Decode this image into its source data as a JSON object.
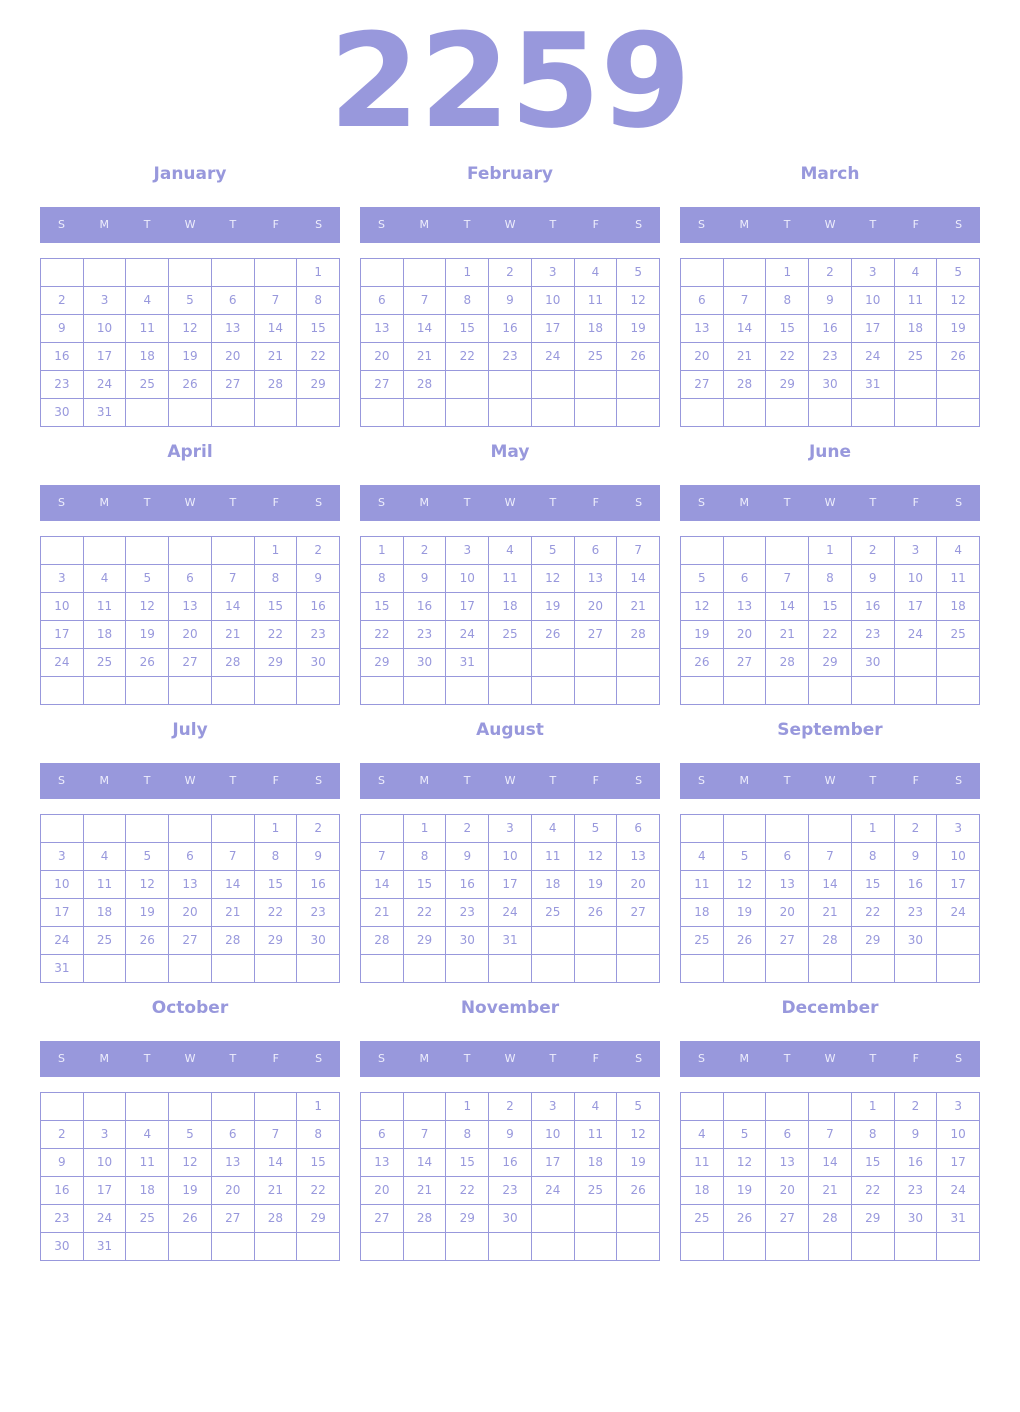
{
  "year": "2259",
  "weekday_labels": [
    "S",
    "M",
    "T",
    "W",
    "T",
    "F",
    "S"
  ],
  "colors": {
    "accent": "#9898dc",
    "header_text": "#eeeefc"
  },
  "months": [
    {
      "name": "January",
      "first_weekday": 6,
      "days": 31
    },
    {
      "name": "February",
      "first_weekday": 2,
      "days": 28
    },
    {
      "name": "March",
      "first_weekday": 2,
      "days": 31
    },
    {
      "name": "April",
      "first_weekday": 5,
      "days": 30
    },
    {
      "name": "May",
      "first_weekday": 0,
      "days": 31
    },
    {
      "name": "June",
      "first_weekday": 3,
      "days": 30
    },
    {
      "name": "July",
      "first_weekday": 5,
      "days": 31
    },
    {
      "name": "August",
      "first_weekday": 1,
      "days": 31
    },
    {
      "name": "September",
      "first_weekday": 4,
      "days": 30
    },
    {
      "name": "October",
      "first_weekday": 6,
      "days": 31
    },
    {
      "name": "November",
      "first_weekday": 2,
      "days": 30
    },
    {
      "name": "December",
      "first_weekday": 4,
      "days": 31
    }
  ]
}
